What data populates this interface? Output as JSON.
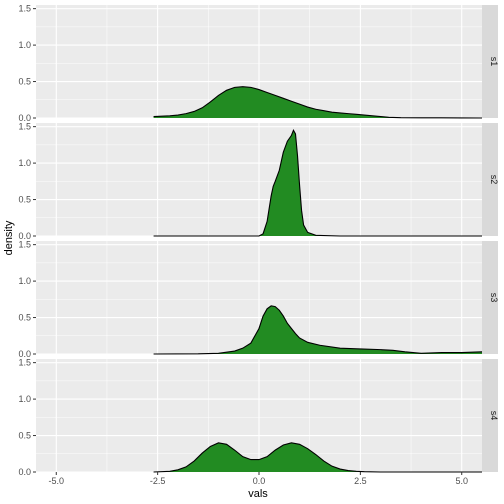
{
  "chart_data": {
    "type": "area",
    "xlabel": "vals",
    "ylabel": "density",
    "xlim": [
      -5.5,
      5.5
    ],
    "ylim": [
      0,
      1.55
    ],
    "x_ticks": [
      -5.0,
      -2.5,
      0.0,
      2.5,
      5.0
    ],
    "x_tick_labels": [
      "-5.0",
      "-2.5",
      "0.0",
      "2.5",
      "5.0"
    ],
    "y_ticks": [
      0,
      0.5,
      1.0,
      1.5
    ],
    "y_tick_labels": [
      "0.0",
      "0.5",
      "1.0",
      "1.5"
    ],
    "grid": true,
    "colors": {
      "panel_bg": "#ebebeb",
      "grid_major": "#ffffff",
      "strip_bg": "#d9d9d9",
      "fill": "#228b22",
      "outline": "#000000"
    },
    "facets": [
      {
        "label": "s1",
        "x": [
          -2.6,
          -2.2,
          -2.0,
          -1.8,
          -1.6,
          -1.4,
          -1.2,
          -1.0,
          -0.8,
          -0.6,
          -0.4,
          -0.2,
          0.0,
          0.2,
          0.4,
          0.6,
          0.8,
          1.0,
          1.2,
          1.4,
          1.6,
          1.8,
          2.0,
          2.2,
          2.4,
          2.6,
          2.8,
          3.0,
          3.2,
          3.5,
          4.0,
          4.5,
          5.0,
          5.5
        ],
        "y": [
          0.02,
          0.03,
          0.04,
          0.06,
          0.09,
          0.14,
          0.22,
          0.31,
          0.38,
          0.42,
          0.43,
          0.42,
          0.39,
          0.35,
          0.31,
          0.27,
          0.23,
          0.19,
          0.15,
          0.12,
          0.1,
          0.08,
          0.07,
          0.06,
          0.05,
          0.04,
          0.03,
          0.02,
          0.01,
          0.005,
          0.003,
          0.002,
          0.001,
          0.0
        ]
      },
      {
        "label": "s2",
        "x": [
          -2.6,
          -1.0,
          0.0,
          0.1,
          0.2,
          0.3,
          0.35,
          0.4,
          0.5,
          0.6,
          0.7,
          0.8,
          0.85,
          0.9,
          0.95,
          1.0,
          1.05,
          1.1,
          1.2,
          1.4,
          2.0,
          3.0,
          4.0,
          5.5
        ],
        "y": [
          0.0,
          0.0,
          0.0,
          0.03,
          0.2,
          0.55,
          0.68,
          0.75,
          0.9,
          1.15,
          1.3,
          1.38,
          1.45,
          1.4,
          1.1,
          0.7,
          0.35,
          0.15,
          0.05,
          0.01,
          0.0,
          0.0,
          0.0,
          0.0
        ]
      },
      {
        "label": "s3",
        "x": [
          -2.6,
          -1.5,
          -1.0,
          -0.6,
          -0.4,
          -0.2,
          0.0,
          0.1,
          0.2,
          0.3,
          0.4,
          0.5,
          0.6,
          0.7,
          0.8,
          0.9,
          1.0,
          1.2,
          1.5,
          2.0,
          2.5,
          3.0,
          3.3,
          3.6,
          4.0,
          4.5,
          5.0,
          5.5
        ],
        "y": [
          0.0,
          0.002,
          0.01,
          0.04,
          0.08,
          0.15,
          0.35,
          0.52,
          0.62,
          0.66,
          0.65,
          0.6,
          0.52,
          0.42,
          0.35,
          0.28,
          0.22,
          0.16,
          0.12,
          0.08,
          0.07,
          0.06,
          0.05,
          0.03,
          0.01,
          0.02,
          0.02,
          0.03
        ]
      },
      {
        "label": "s4",
        "x": [
          -2.6,
          -2.2,
          -2.0,
          -1.8,
          -1.6,
          -1.4,
          -1.2,
          -1.0,
          -0.8,
          -0.6,
          -0.4,
          -0.2,
          0.0,
          0.2,
          0.4,
          0.6,
          0.8,
          1.0,
          1.2,
          1.4,
          1.6,
          1.8,
          2.0,
          2.2,
          2.4,
          2.6,
          3.0,
          4.0,
          5.5
        ],
        "y": [
          0.0,
          0.01,
          0.03,
          0.07,
          0.15,
          0.26,
          0.35,
          0.4,
          0.38,
          0.3,
          0.21,
          0.17,
          0.17,
          0.21,
          0.3,
          0.37,
          0.4,
          0.38,
          0.32,
          0.24,
          0.15,
          0.08,
          0.04,
          0.02,
          0.01,
          0.005,
          0.0,
          0.0,
          0.0
        ]
      }
    ]
  }
}
